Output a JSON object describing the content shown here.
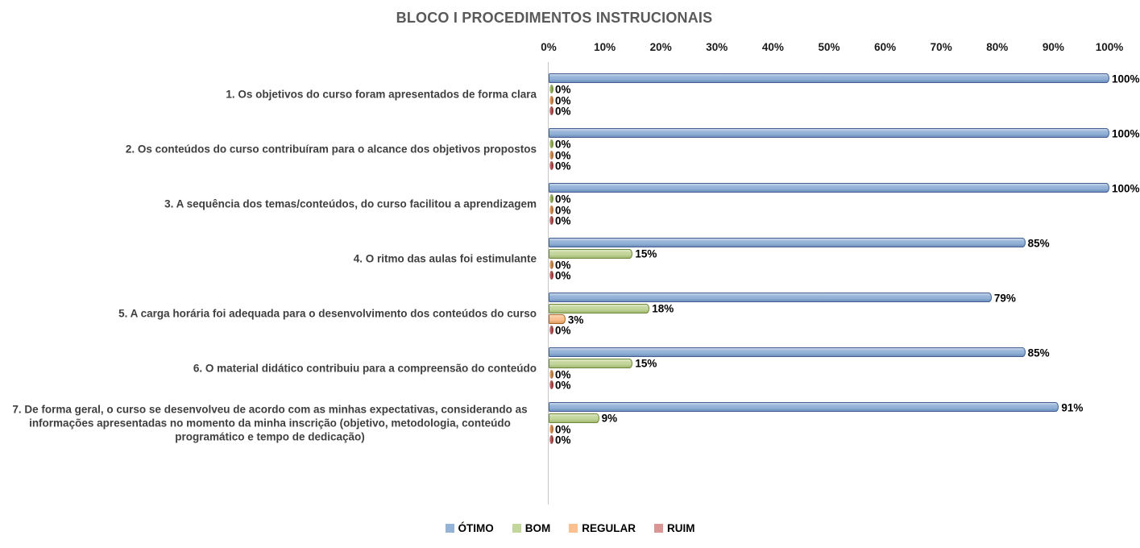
{
  "chart_data": {
    "type": "bar",
    "orientation": "horizontal",
    "title": "BLOCO I PROCEDIMENTOS INSTRUCIONAIS",
    "categories": [
      "1. Os objetivos do curso foram apresentados de forma clara",
      "2. Os conteúdos do curso contribuíram para o alcance dos objetivos propostos",
      "3. A sequência dos temas/conteúdos, do curso facilitou a aprendizagem",
      "4. O ritmo das aulas foi estimulante",
      "5. A carga horária foi adequada para o desenvolvimento dos conteúdos do curso",
      "6. O material didático contribuiu para a compreensão do conteúdo",
      "7. De forma geral, o curso se desenvolveu de acordo com as minhas expectativas, considerando as informações apresentadas no momento da minha inscrição (objetivo, metodologia, conteúdo programático e tempo de dedicação)"
    ],
    "series": [
      {
        "key": "otimo",
        "name": "ÓTIMO",
        "values": [
          100,
          100,
          100,
          85,
          79,
          85,
          91
        ],
        "fill": "#95B3D7",
        "fill_top": "#C6D5EA",
        "fill_bottom": "#6F90BF",
        "border": "#41608F",
        "marker": "#5E7DAD"
      },
      {
        "key": "bom",
        "name": "BOM",
        "values": [
          0,
          0,
          0,
          15,
          18,
          15,
          9
        ],
        "fill": "#C3D69B",
        "fill_top": "#DFE8C7",
        "fill_bottom": "#A3B973",
        "border": "#6E8639",
        "marker": "#7A9440"
      },
      {
        "key": "regular",
        "name": "REGULAR",
        "values": [
          0,
          0,
          0,
          0,
          3,
          0,
          0
        ],
        "fill": "#FAC090",
        "fill_top": "#FCDCBB",
        "fill_bottom": "#DE9E61",
        "border": "#A76428",
        "marker": "#B0703A"
      },
      {
        "key": "ruim",
        "name": "RUIM",
        "values": [
          0,
          0,
          0,
          0,
          0,
          0,
          0
        ],
        "fill": "#D99694",
        "fill_top": "#EAC2C1",
        "fill_bottom": "#BB6A67",
        "border": "#8A3532",
        "marker": "#8F3A37"
      }
    ],
    "value_suffix": "%",
    "x_ticks": [
      "0%",
      "10%",
      "20%",
      "30%",
      "40%",
      "50%",
      "60%",
      "70%",
      "80%",
      "90%",
      "100%"
    ],
    "xlim": [
      0,
      100
    ],
    "legend_position": "bottom",
    "grid": false
  },
  "colors": {
    "title": "#595959",
    "category_label": "#3F3F3F",
    "tick_label": "#1A1A1A",
    "value_label": "#000000",
    "axis_line": "#C6C6C6"
  }
}
